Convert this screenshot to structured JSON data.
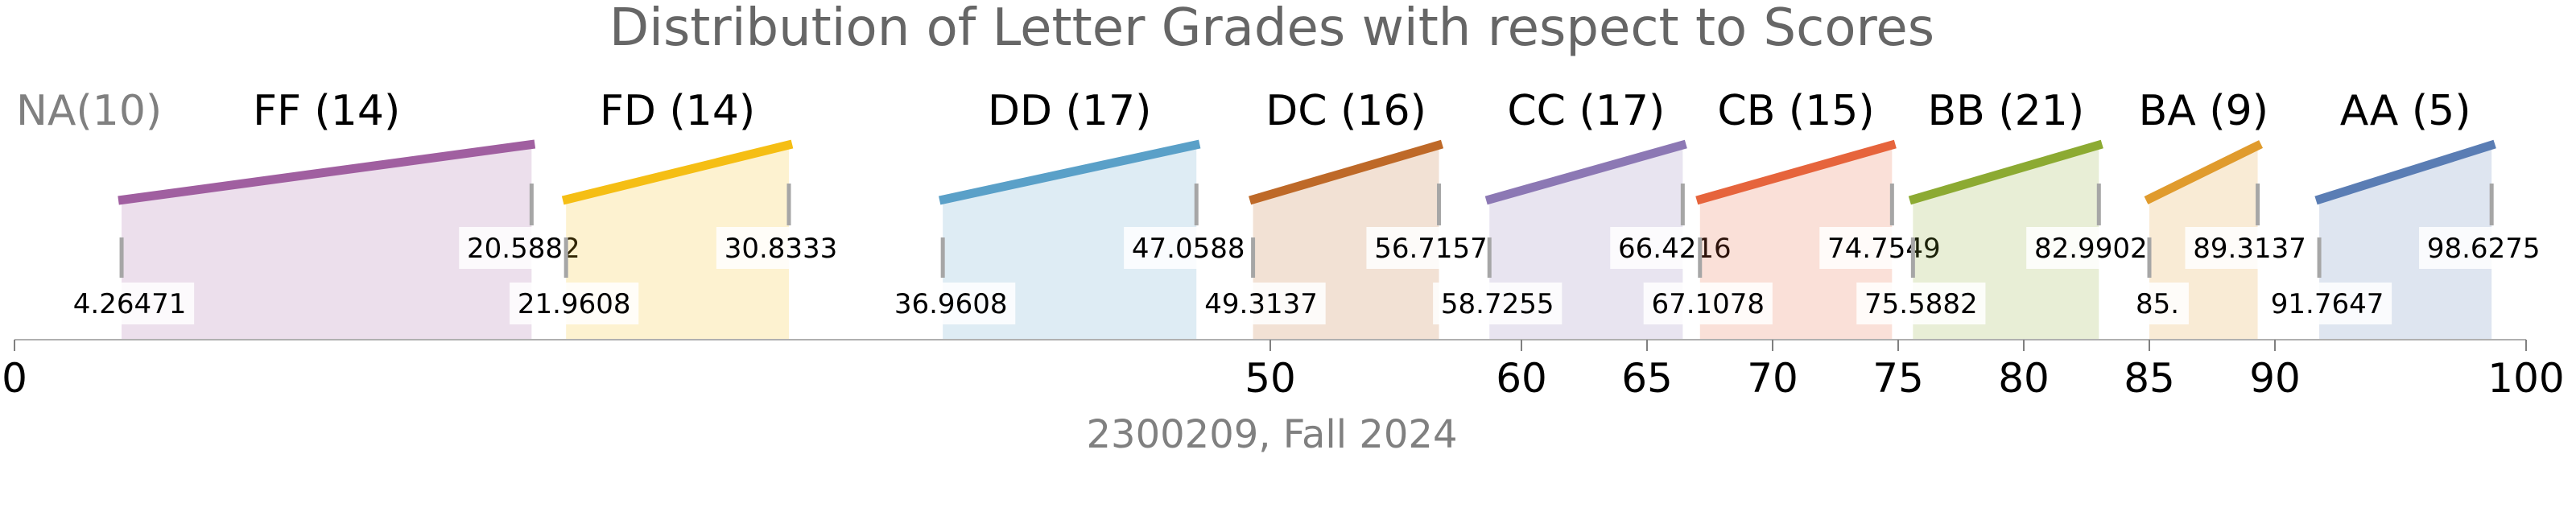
{
  "chart_data": {
    "type": "area",
    "title": "Distribution of Letter Grades with respect to Scores",
    "subtitle": "2300209, Fall 2024",
    "xlim": [
      0,
      100
    ],
    "x_ticks": [
      0,
      50,
      60,
      65,
      70,
      75,
      80,
      85,
      90,
      100
    ],
    "na": {
      "label": "NA",
      "count": 10,
      "text": "NA(10)"
    },
    "grades": [
      {
        "grade": "FF",
        "count": 14,
        "label": "FF (14)",
        "min": 4.26471,
        "max": 20.5882,
        "min_text": "4.26471",
        "max_text": "20.5882",
        "color": "#a05fa0"
      },
      {
        "grade": "FD",
        "count": 14,
        "label": "FD (14)",
        "min": 21.9608,
        "max": 30.8333,
        "min_text": "21.9608",
        "max_text": "30.8333",
        "color": "#f5be14"
      },
      {
        "grade": "DD",
        "count": 17,
        "label": "DD (17)",
        "min": 36.9608,
        "max": 47.0588,
        "min_text": "36.9608",
        "max_text": "47.0588",
        "color": "#5aa0c8"
      },
      {
        "grade": "DC",
        "count": 16,
        "label": "DC (16)",
        "min": 49.3137,
        "max": 56.7157,
        "min_text": "49.3137",
        "max_text": "56.7157",
        "color": "#be6928"
      },
      {
        "grade": "CC",
        "count": 17,
        "label": "CC (17)",
        "min": 58.7255,
        "max": 66.4216,
        "min_text": "58.7255",
        "max_text": "66.4216",
        "color": "#8c78b4"
      },
      {
        "grade": "CB",
        "count": 15,
        "label": "CB (15)",
        "min": 67.1078,
        "max": 74.7549,
        "min_text": "67.1078",
        "max_text": "74.7549",
        "color": "#e6643c"
      },
      {
        "grade": "BB",
        "count": 21,
        "label": "BB (21)",
        "min": 75.5882,
        "max": 82.9902,
        "min_text": "75.5882",
        "max_text": "82.9902",
        "color": "#8caa32"
      },
      {
        "grade": "BA",
        "count": 9,
        "label": "BA (9)",
        "min": 85.0,
        "max": 89.3137,
        "min_text": "85.",
        "max_text": "89.3137",
        "color": "#e09b2d"
      },
      {
        "grade": "AA",
        "count": 5,
        "label": "AA (5)",
        "min": 91.7647,
        "max": 98.6275,
        "min_text": "91.7647",
        "max_text": "98.6275",
        "color": "#5a7db4"
      }
    ]
  }
}
